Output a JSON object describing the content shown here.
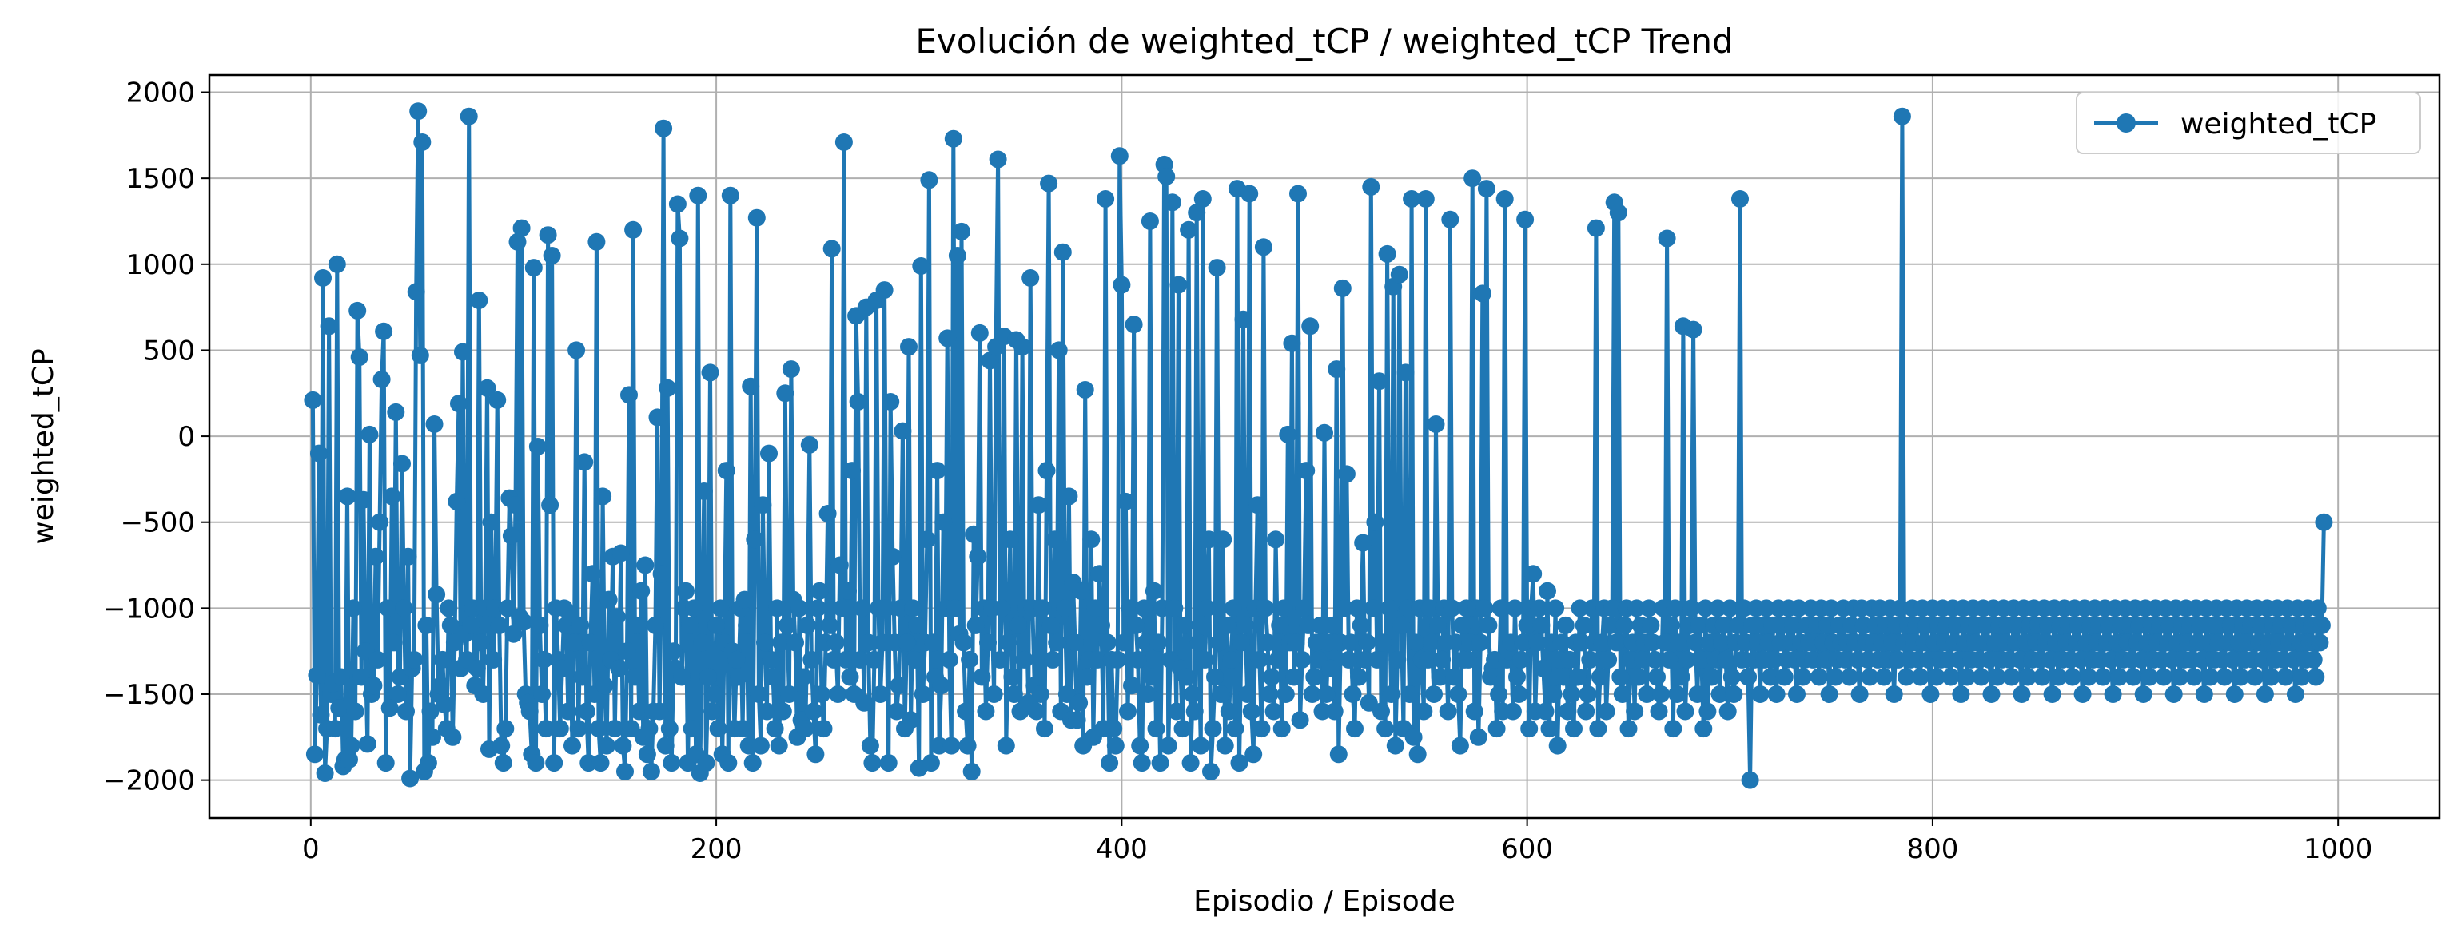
{
  "chart_data": {
    "type": "line",
    "title": "Evolución de weighted_tCP / weighted_tCP Trend",
    "xlabel": "Episodio / Episode",
    "ylabel": "weighted_tCP",
    "xlim": [
      -50,
      1050
    ],
    "ylim": [
      -2220,
      2100
    ],
    "x_ticks": [
      0,
      200,
      400,
      600,
      800,
      1000
    ],
    "y_ticks": [
      -2000,
      -1500,
      -1000,
      -500,
      0,
      500,
      1000,
      1500,
      2000
    ],
    "grid": true,
    "legend_position": "top-right",
    "marker": "circle",
    "series": [
      {
        "name": "weighted_tCP",
        "color": "#1f77b4",
        "x_start": 1,
        "x_step": 1,
        "y": [
          210,
          -1850,
          -1390,
          -100,
          -1620,
          920,
          -1960,
          -1700,
          640,
          -1500,
          -1440,
          -1700,
          1000,
          -1580,
          -1400,
          -1920,
          -1880,
          -350,
          -1880,
          -1800,
          -1000,
          -1600,
          730,
          460,
          -1400,
          -370,
          -1250,
          -1790,
          10,
          -1500,
          -1450,
          -700,
          -1300,
          -500,
          330,
          610,
          -1900,
          -1000,
          -1580,
          -350,
          -1200,
          140,
          -1500,
          -1400,
          -160,
          -1000,
          -1600,
          -700,
          -1990,
          -1350,
          -1300,
          840,
          1890,
          470,
          1710,
          -1950,
          -1100,
          -1900,
          -1600,
          -1750,
          70,
          -920,
          -1500,
          -1450,
          -1300,
          -1560,
          -1700,
          -1000,
          -1100,
          -1750,
          -1200,
          -380,
          190,
          -1350,
          490,
          -1150,
          -1300,
          1860,
          -1100,
          -1000,
          -1450,
          -1350,
          790,
          -1200,
          -1500,
          -1000,
          280,
          -1820,
          -500,
          -1300,
          -1000,
          210,
          -1100,
          -1800,
          -1900,
          -1700,
          -1000,
          -360,
          -580,
          -1150,
          -400,
          1130,
          -1050,
          1210,
          -1080,
          -1500,
          -1550,
          -1600,
          -1850,
          980,
          -1900,
          -60,
          -1100,
          -1500,
          -1300,
          -1700,
          1170,
          -400,
          1050,
          -1900,
          -1000,
          -1300,
          -1700,
          -1350,
          -1000,
          -1100,
          -1600,
          -1050,
          -1800,
          -1200,
          500,
          -1700,
          -1100,
          -1400,
          -150,
          -1600,
          -1900,
          -1200,
          -800,
          -1500,
          1130,
          -1700,
          -1900,
          -350,
          -1450,
          -1800,
          -950,
          -1300,
          -700,
          -1700,
          -1050,
          -1350,
          -680,
          -1800,
          -1950,
          -1250,
          240,
          -1700,
          1200,
          -1400,
          -1100,
          -1600,
          -900,
          -1750,
          -750,
          -1850,
          -1700,
          -1950,
          -1600,
          -1100,
          110,
          -1600,
          -800,
          1790,
          -1800,
          280,
          -1700,
          -1900,
          -1250,
          -1350,
          1350,
          1150,
          -1400,
          -1000,
          -900,
          -1900,
          -1100,
          -1700,
          -1000,
          -1850,
          1400,
          -1960,
          -1200,
          -320,
          -1900,
          -1400,
          370,
          -1600,
          -1500,
          -1100,
          -1700,
          -1000,
          -1850,
          -1200,
          -200,
          -1900,
          1400,
          -1250,
          -1700,
          -1300,
          -1400,
          -1000,
          -1700,
          -950,
          -1100,
          -1800,
          290,
          -1900,
          -600,
          1270,
          -1500,
          -1800,
          -400,
          -1200,
          -1600,
          -100,
          -1300,
          -1400,
          -1700,
          -1000,
          -1800,
          -1200,
          -1600,
          250,
          -1100,
          -1500,
          390,
          -950,
          -1200,
          -1750,
          -1000,
          -1650,
          -1400,
          -1700,
          -1100,
          -50,
          -1300,
          -1600,
          -1850,
          -1000,
          -900,
          -1500,
          -1700,
          -1200,
          -450,
          -1100,
          1090,
          -1300,
          -1200,
          -1500,
          -750,
          -1000,
          1710,
          -1300,
          -900,
          -1400,
          -200,
          -1500,
          700,
          200,
          -1300,
          -1000,
          -1550,
          750,
          -1200,
          -1800,
          -1900,
          -1300,
          790,
          -1000,
          -1500,
          -1200,
          850,
          -1000,
          -1900,
          200,
          -700,
          -1200,
          -1600,
          -1450,
          -1000,
          30,
          -1700,
          -1200,
          520,
          -1650,
          -1000,
          -1300,
          -1100,
          -1930,
          990,
          -1500,
          -1200,
          -600,
          1490,
          -1900,
          -1200,
          -1400,
          -200,
          -1800,
          -1450,
          -500,
          -1000,
          570,
          -1300,
          -1800,
          1730,
          -1000,
          1050,
          -1150,
          1190,
          -1200,
          -1600,
          -1800,
          -1300,
          -1950,
          -570,
          -1100,
          -700,
          600,
          -1400,
          -1000,
          -1600,
          -1200,
          440,
          -1000,
          -1500,
          520,
          1610,
          -1300,
          -1000,
          580,
          -1800,
          -1200,
          -600,
          -1400,
          -1500,
          560,
          -1100,
          -1600,
          520,
          -1300,
          -1000,
          -1550,
          920,
          -1000,
          -1450,
          -1600,
          -400,
          -1500,
          -1000,
          -1700,
          -200,
          1470,
          -1100,
          -1300,
          -600,
          -1200,
          500,
          -1600,
          1070,
          -1000,
          -1500,
          -350,
          -1650,
          -850,
          -1200,
          -1650,
          -1550,
          -900,
          -1800,
          270,
          -1400,
          -1300,
          -600,
          -1750,
          -1000,
          -1300,
          -800,
          -1100,
          -1700,
          1380,
          -1200,
          -1900,
          -1300,
          -1700,
          -1800,
          -1300,
          1630,
          880,
          -1200,
          -380,
          -1600,
          -1000,
          -1450,
          650,
          -1100,
          -1300,
          -1800,
          -1900,
          -1000,
          -1200,
          -1500,
          1250,
          -1400,
          -900,
          -1700,
          -1200,
          -1900,
          -1000,
          1580,
          1510,
          -1800,
          -1300,
          1360,
          -1000,
          -1600,
          880,
          -1350,
          -1700,
          -1100,
          -1400,
          1200,
          -1900,
          -1500,
          -1600,
          1300,
          -1200,
          -1800,
          1380,
          -1300,
          -1000,
          -600,
          -1950,
          -1700,
          -1400,
          980,
          -1200,
          -1500,
          -600,
          -1800,
          -1100,
          -1600,
          -1300,
          -1000,
          -1700,
          1440,
          -1900,
          -1200,
          680,
          -1100,
          -1500,
          1410,
          -1600,
          -1850,
          -1000,
          -400,
          -1300,
          -1700,
          1100,
          -1000,
          -1200,
          -1500,
          -1400,
          -1600,
          -600,
          -1300,
          -1100,
          -1700,
          -1000,
          -1500,
          10,
          -1200,
          540,
          -1400,
          -1200,
          1410,
          -1650,
          -1300,
          -1000,
          -200,
          -1100,
          640,
          -1500,
          -1400,
          -1200,
          -1300,
          -1100,
          -1600,
          20,
          -1500,
          -1200,
          -1350,
          -1100,
          -1600,
          390,
          -1850,
          -1200,
          860,
          -1000,
          -220,
          -1300,
          -1200,
          -1500,
          -1700,
          -1000,
          -1400,
          -1100,
          -620,
          -1300,
          -1200,
          -1550,
          1450,
          -1000,
          -500,
          -1300,
          320,
          -1600,
          -1200,
          -1700,
          1060,
          -1000,
          -1500,
          870,
          -1800,
          -1300,
          940,
          -1100,
          -1700,
          370,
          -1000,
          -1500,
          1380,
          -1750,
          -1200,
          -1850,
          -1000,
          -1300,
          -1600,
          1380,
          -1300,
          -1000,
          -1200,
          -1500,
          70,
          -1100,
          -1400,
          -1300,
          -1000,
          -1200,
          -1600,
          1260,
          -1000,
          -1400,
          -1200,
          -1500,
          -1800,
          -1100,
          -1300,
          -1000,
          -1300,
          -1200,
          1500,
          -1600,
          -1000,
          -1750,
          -1200,
          830,
          -1000,
          1440,
          -1100,
          -1400,
          -1350,
          -1300,
          -1700,
          -1500,
          -1000,
          -1600,
          1380,
          -1300,
          -1250,
          -1200,
          -1600,
          -1000,
          -1400,
          -1500,
          -1300,
          -1200,
          1260,
          -1100,
          -1700,
          -1000,
          -800,
          -1600,
          -1200,
          -1000,
          -1100,
          -1350,
          -1600,
          -900,
          -1700,
          -1200,
          -1500,
          -1000,
          -1800,
          -1300,
          -1200,
          -1400,
          -1100,
          -1600,
          -1300,
          -1500,
          -1700,
          -1200,
          -1400,
          -1000,
          -1200,
          -1100,
          -1600,
          -1500,
          -1300,
          -1000,
          -1200,
          1210,
          -1700,
          -1400,
          -1200,
          -1000,
          -1600,
          -1300,
          -1100,
          -1000,
          1360,
          -1200,
          1300,
          -1400,
          -1500,
          -1100,
          -1000,
          -1700,
          -1300,
          -1200,
          -1600,
          -1000,
          -1400,
          -1100,
          -1300,
          -1200,
          -1500,
          -1000,
          -1100,
          -1200,
          -1300,
          -1400,
          -1600,
          -1500,
          -1000,
          -1200,
          1150,
          -1300,
          -1100,
          -1700,
          -1000,
          -1500,
          -1200,
          -1400,
          640,
          -1600,
          -1300,
          -1100,
          -1000,
          620,
          -1200,
          -1500,
          -1100,
          -1300,
          -1700,
          -1000,
          -1600,
          -1200,
          -1400,
          -1100,
          -1300,
          -1000,
          -1500,
          -1200,
          -1100,
          -1300,
          -1600,
          -1000,
          -1400,
          -1500,
          -1200,
          -1100,
          1380,
          -1300,
          -1000,
          -1200,
          -1400,
          -2000,
          -1100,
          -1300,
          -1000,
          -1200,
          -1500,
          -1100,
          -1300,
          -1000,
          -1200,
          -1400,
          -1100,
          -1300,
          -1500,
          -1000,
          -1200,
          -1100,
          -1400,
          -1300,
          -1000,
          -1200,
          -1100,
          -1300,
          -1500,
          -1000,
          -1200,
          -1400,
          -1300,
          -1100,
          -1200,
          -1000,
          -1300,
          -1200,
          -1100,
          -1400,
          -1000,
          -1200,
          -1300,
          -1100,
          -1500,
          -1000,
          -1200,
          -1400,
          -1300,
          -1100,
          -1200,
          -1000,
          -1300,
          -1200,
          -1400,
          -1100,
          -1000,
          -1200,
          -1300,
          -1500,
          -1000,
          -1100,
          -1200,
          -1300,
          -1400,
          -1000,
          -1200,
          -1100,
          -1300,
          -1000,
          -1200,
          -1400,
          -1100,
          -1300,
          -1000,
          -1200,
          -1500,
          -1100,
          -1300,
          -1000,
          1860,
          -1200,
          -1400,
          -1100,
          -1300,
          -1000,
          -1200,
          -1100,
          -1300,
          -1400,
          -1000,
          -1200,
          -1100,
          -1300,
          -1500,
          -1000,
          -1200,
          -1400,
          -1100,
          -1300,
          -1000,
          -1200,
          -1100,
          -1300,
          -1400,
          -1000,
          -1200,
          -1100,
          -1300,
          -1500,
          -1000,
          -1200,
          -1400,
          -1100,
          -1300,
          -1000,
          -1200,
          -1100,
          -1300,
          -1400,
          -1000,
          -1200,
          -1100,
          -1300,
          -1500,
          -1000,
          -1200,
          -1400,
          -1100,
          -1300,
          -1000,
          -1200,
          -1100,
          -1300,
          -1400,
          -1000,
          -1200,
          -1100,
          -1300,
          -1500,
          -1000,
          -1200,
          -1400,
          -1100,
          -1300,
          -1000,
          -1200,
          -1100,
          -1300,
          -1400,
          -1000,
          -1200,
          -1100,
          -1300,
          -1500,
          -1000,
          -1200,
          -1400,
          -1100,
          -1300,
          -1000,
          -1200,
          -1100,
          -1300,
          -1400,
          -1000,
          -1200,
          -1100,
          -1300,
          -1500,
          -1000,
          -1200,
          -1400,
          -1100,
          -1300,
          -1000,
          -1200,
          -1100,
          -1300,
          -1400,
          -1000,
          -1200,
          -1100,
          -1300,
          -1500,
          -1000,
          -1200,
          -1400,
          -1100,
          -1300,
          -1000,
          -1200,
          -1100,
          -1300,
          -1400,
          -1000,
          -1200,
          -1100,
          -1300,
          -1500,
          -1000,
          -1200,
          -1400,
          -1100,
          -1300,
          -1000,
          -1200,
          -1100,
          -1300,
          -1400,
          -1000,
          -1200,
          -1100,
          -1300,
          -1500,
          -1000,
          -1200,
          -1400,
          -1100,
          -1300,
          -1000,
          -1200,
          -1100,
          -1300,
          -1400,
          -1000,
          -1200,
          -1100,
          -1300,
          -1500,
          -1000,
          -1200,
          -1400,
          -1100,
          -1300,
          -1000,
          -1200,
          -1100,
          -1300,
          -1400,
          -1000,
          -1200,
          -1100,
          -1300,
          -1500,
          -1000,
          -1200,
          -1400,
          -1100,
          -1300,
          -1000,
          -1200,
          -1100,
          -1300,
          -1400,
          -1000,
          -1200,
          -1100,
          -1300,
          -1500,
          -1000,
          -1200,
          -1400,
          -1100,
          -1300,
          -1000,
          -1200,
          -1100,
          -1300,
          -1400,
          -1000,
          -1200,
          -1100,
          -1300,
          -1500,
          -1000,
          -1200,
          -1400,
          -1100,
          -1300,
          -1000,
          -1200,
          -1100,
          -1300,
          -1400,
          -1000,
          -1200,
          -1100,
          -500
        ]
      }
    ]
  }
}
